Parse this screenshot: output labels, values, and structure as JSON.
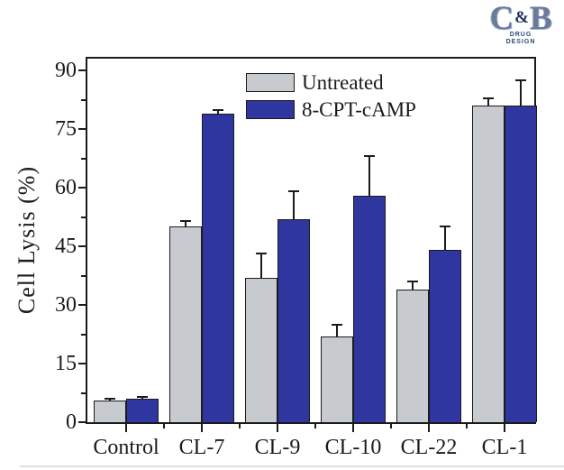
{
  "logo": {
    "c": "C",
    "amp": "&",
    "b": "B",
    "sub1": "DRUG",
    "sub2": "DESIGN"
  },
  "chart_data": {
    "type": "bar",
    "title": "",
    "xlabel": "",
    "ylabel": "Cell Lysis (%)",
    "categories": [
      "Control",
      "CL-7",
      "CL-9",
      "CL-10",
      "CL-22",
      "CL-1"
    ],
    "series": [
      {
        "name": "Untreated",
        "color": "#c7cacf",
        "values": [
          5.5,
          50,
          37,
          22,
          34,
          81
        ],
        "errors": [
          0.7,
          1.6,
          6.5,
          3.2,
          2.2,
          2.0
        ]
      },
      {
        "name": "8-CPT-cAMP",
        "color": "#2f36a0",
        "values": [
          6.0,
          79,
          52,
          58,
          44,
          81
        ],
        "errors": [
          0.7,
          1.0,
          7.3,
          10.3,
          6.2,
          6.7
        ]
      }
    ],
    "ylim": [
      0,
      93
    ],
    "yticks": [
      0,
      15,
      30,
      45,
      60,
      75,
      90
    ],
    "y_minor_step": 7.5,
    "legend_position": "top-center-inside",
    "grid": false,
    "error_bars": "upper",
    "axis_color": "#1b1b1b"
  }
}
